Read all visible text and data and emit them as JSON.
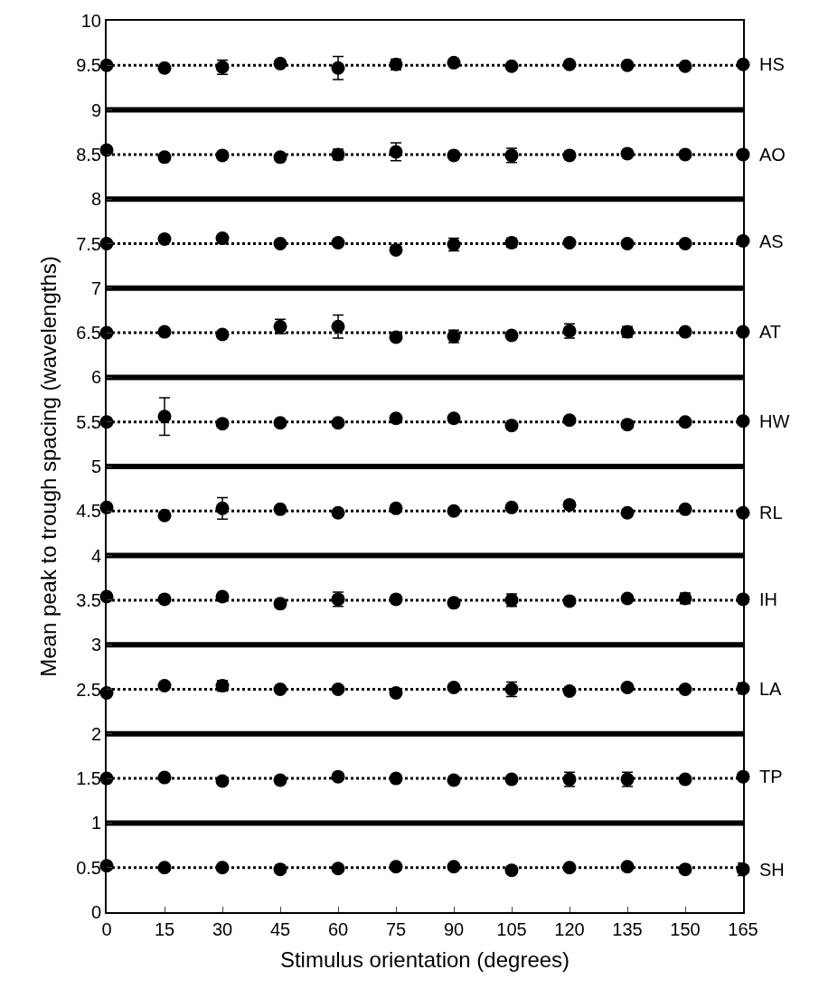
{
  "chart_data": {
    "type": "scatter",
    "xlabel": "Stimulus orientation (degrees)",
    "ylabel": "Mean peak to trough spacing (wavelengths)",
    "x": [
      0,
      15,
      30,
      45,
      60,
      75,
      90,
      105,
      120,
      135,
      150,
      165
    ],
    "xlim": [
      0,
      165
    ],
    "xticks": [
      0,
      15,
      30,
      45,
      60,
      75,
      90,
      105,
      120,
      135,
      150,
      165
    ],
    "ylim": [
      0,
      10
    ],
    "yticks": [
      0,
      0.5,
      1,
      1.5,
      2,
      2.5,
      3,
      3.5,
      4,
      4.5,
      5,
      5.5,
      6,
      6.5,
      7,
      7.5,
      8,
      8.5,
      9,
      9.5,
      10
    ],
    "grid": false,
    "legend": false,
    "marker": "circle",
    "series": [
      {
        "name": "HS",
        "color": "#000000",
        "values": [
          9.5,
          9.47,
          9.48,
          9.52,
          9.47,
          9.51,
          9.53,
          9.49,
          9.51,
          9.5,
          9.49,
          9.51
        ],
        "errors": [
          null,
          null,
          0.08,
          null,
          0.13,
          0.06,
          null,
          null,
          null,
          null,
          null,
          null
        ]
      },
      {
        "name": "AO",
        "color": "#000000",
        "values": [
          8.55,
          8.47,
          8.49,
          8.47,
          8.5,
          8.53,
          8.49,
          8.49,
          8.49,
          8.51,
          8.5,
          8.5
        ],
        "errors": [
          null,
          null,
          null,
          null,
          0.06,
          0.1,
          null,
          0.08,
          null,
          null,
          null,
          null
        ]
      },
      {
        "name": "AS",
        "color": "#000000",
        "values": [
          7.5,
          7.55,
          7.56,
          7.5,
          7.51,
          7.43,
          7.49,
          7.51,
          7.51,
          7.5,
          7.5,
          7.53
        ],
        "errors": [
          null,
          null,
          null,
          null,
          null,
          null,
          0.07,
          0.05,
          null,
          null,
          null,
          null
        ]
      },
      {
        "name": "AT",
        "color": "#000000",
        "values": [
          6.5,
          6.51,
          6.48,
          6.57,
          6.57,
          6.45,
          6.46,
          6.47,
          6.52,
          6.51,
          6.51,
          6.51
        ],
        "errors": [
          null,
          null,
          null,
          0.08,
          0.13,
          null,
          0.07,
          null,
          0.08,
          0.06,
          null,
          null
        ]
      },
      {
        "name": "HW",
        "color": "#000000",
        "values": [
          5.5,
          5.56,
          5.48,
          5.49,
          5.49,
          5.54,
          5.54,
          5.46,
          5.52,
          5.47,
          5.5,
          5.51
        ],
        "errors": [
          null,
          0.21,
          null,
          null,
          null,
          null,
          null,
          null,
          null,
          null,
          null,
          null
        ]
      },
      {
        "name": "RL",
        "color": "#000000",
        "values": [
          4.54,
          4.45,
          4.53,
          4.52,
          4.48,
          4.53,
          4.5,
          4.54,
          4.57,
          4.48,
          4.52,
          4.48
        ],
        "errors": [
          null,
          null,
          0.12,
          null,
          null,
          null,
          null,
          null,
          null,
          null,
          null,
          null
        ]
      },
      {
        "name": "IH",
        "color": "#000000",
        "values": [
          3.54,
          3.51,
          3.54,
          3.46,
          3.51,
          3.51,
          3.47,
          3.5,
          3.49,
          3.52,
          3.52,
          3.51
        ],
        "errors": [
          null,
          null,
          null,
          null,
          0.08,
          null,
          null,
          0.07,
          null,
          null,
          0.06,
          null
        ]
      },
      {
        "name": "LA",
        "color": "#000000",
        "values": [
          2.46,
          2.54,
          2.54,
          2.5,
          2.5,
          2.46,
          2.52,
          2.5,
          2.48,
          2.52,
          2.5,
          2.51
        ],
        "errors": [
          null,
          null,
          0.06,
          null,
          null,
          null,
          null,
          0.08,
          null,
          null,
          null,
          0.06
        ]
      },
      {
        "name": "TP",
        "color": "#000000",
        "values": [
          1.5,
          1.51,
          1.47,
          1.48,
          1.52,
          1.5,
          1.48,
          1.49,
          1.49,
          1.49,
          1.49,
          1.52
        ],
        "errors": [
          null,
          null,
          null,
          null,
          null,
          null,
          null,
          null,
          0.08,
          0.08,
          null,
          null
        ]
      },
      {
        "name": "SH",
        "color": "#000000",
        "values": [
          0.52,
          0.5,
          0.5,
          0.48,
          0.49,
          0.51,
          0.51,
          0.47,
          0.5,
          0.51,
          0.48,
          0.48
        ],
        "errors": [
          null,
          null,
          null,
          null,
          null,
          null,
          null,
          null,
          null,
          null,
          null,
          0.07
        ]
      }
    ],
    "ref_lines": [
      {
        "axis": "y",
        "value": 1,
        "color": "#000000",
        "line_style": "solid"
      },
      {
        "axis": "y",
        "value": 2,
        "color": "#000000",
        "line_style": "solid"
      },
      {
        "axis": "y",
        "value": 3,
        "color": "#000000",
        "line_style": "solid"
      },
      {
        "axis": "y",
        "value": 4,
        "color": "#000000",
        "line_style": "solid"
      },
      {
        "axis": "y",
        "value": 5,
        "color": "#000000",
        "line_style": "solid"
      },
      {
        "axis": "y",
        "value": 6,
        "color": "#000000",
        "line_style": "solid"
      },
      {
        "axis": "y",
        "value": 7,
        "color": "#000000",
        "line_style": "solid"
      },
      {
        "axis": "y",
        "value": 8,
        "color": "#000000",
        "line_style": "solid"
      },
      {
        "axis": "y",
        "value": 9,
        "color": "#000000",
        "line_style": "solid"
      },
      {
        "axis": "y",
        "value": 0.5,
        "color": "#000000",
        "line_style": "dotted"
      },
      {
        "axis": "y",
        "value": 1.5,
        "color": "#000000",
        "line_style": "dotted"
      },
      {
        "axis": "y",
        "value": 2.5,
        "color": "#000000",
        "line_style": "dotted"
      },
      {
        "axis": "y",
        "value": 3.5,
        "color": "#000000",
        "line_style": "dotted"
      },
      {
        "axis": "y",
        "value": 4.5,
        "color": "#000000",
        "line_style": "dotted"
      },
      {
        "axis": "y",
        "value": 5.5,
        "color": "#000000",
        "line_style": "dotted"
      },
      {
        "axis": "y",
        "value": 6.5,
        "color": "#000000",
        "line_style": "dotted"
      },
      {
        "axis": "y",
        "value": 7.5,
        "color": "#000000",
        "line_style": "dotted"
      },
      {
        "axis": "y",
        "value": 8.5,
        "color": "#000000",
        "line_style": "dotted"
      },
      {
        "axis": "y",
        "value": 9.5,
        "color": "#000000",
        "line_style": "dotted"
      }
    ]
  }
}
